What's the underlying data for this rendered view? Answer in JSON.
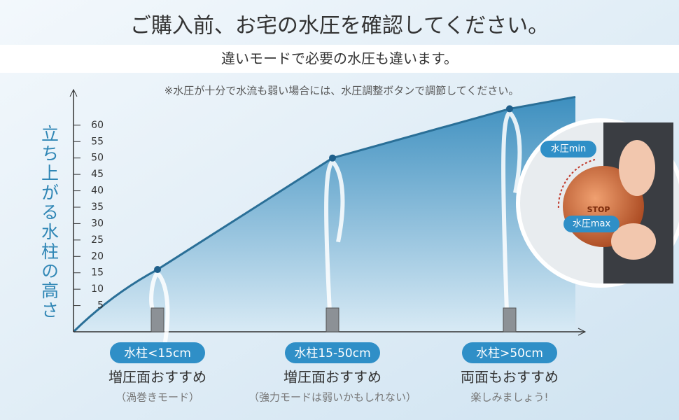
{
  "chart_data": {
    "type": "area",
    "title": "ご購入前、お宅の水圧を確認してください。",
    "subtitle": "違いモードで必要の水圧も違います。",
    "note": "※水圧が十分で水流も弱い場合には、水圧調整ボタンで調節してください。",
    "y_label": "立ち上がる水柱の高さ",
    "ylim": [
      0,
      70
    ],
    "yticks": [
      5,
      10,
      15,
      20,
      25,
      30,
      35,
      40,
      45,
      50,
      55,
      60
    ],
    "categories": [
      "水柱<15cm",
      "水柱15-50cm",
      "水柱>50cm"
    ],
    "recommendations": [
      "増圧面おすすめ",
      "増圧面おすすめ",
      "両面もおすすめ"
    ],
    "notes": [
      "（渦巻きモード）",
      "（強力モードは弱いかもしれない）",
      "楽しみましょう!"
    ],
    "values": [
      16,
      50,
      65
    ],
    "color": "#2a6f97",
    "dial_labels": [
      "水圧min",
      "水圧max",
      "STOP"
    ]
  }
}
